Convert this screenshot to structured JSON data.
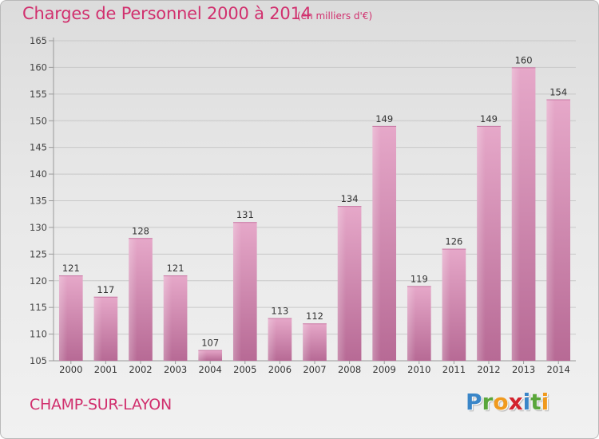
{
  "header": {
    "title": "Charges de Personnel 2000 à 2014",
    "subtitle": "(en milliers d'€)"
  },
  "footer": {
    "commune": "CHAMP-SUR-LAYON",
    "logo_letters": [
      {
        "char": "P",
        "color": "#3a86c8"
      },
      {
        "char": "r",
        "color": "#5aa63a"
      },
      {
        "char": "o",
        "color": "#f09a1e"
      },
      {
        "char": "x",
        "color": "#d3232e"
      },
      {
        "char": "i",
        "color": "#3a86c8"
      },
      {
        "char": "t",
        "color": "#5aa63a"
      },
      {
        "char": "i",
        "color": "#f09a1e"
      }
    ]
  },
  "colors": {
    "accent": "#d1306e",
    "bar_top": "#e6a8c9",
    "bar_bottom": "#b76a95",
    "grid": "#c8c8c8"
  },
  "chart_data": {
    "type": "bar",
    "title": "Charges de Personnel 2000 à 2014",
    "subtitle": "(en milliers d'€)",
    "categories": [
      "2000",
      "2001",
      "2002",
      "2003",
      "2004",
      "2005",
      "2006",
      "2007",
      "2008",
      "2009",
      "2010",
      "2011",
      "2012",
      "2013",
      "2014"
    ],
    "values": [
      121,
      117,
      128,
      121,
      107,
      131,
      113,
      112,
      134,
      149,
      119,
      126,
      149,
      160,
      154
    ],
    "ylim": [
      105,
      165
    ],
    "yticks": [
      105,
      110,
      115,
      120,
      125,
      130,
      135,
      140,
      145,
      150,
      155,
      160,
      165
    ],
    "grid": true,
    "data_labels": true
  }
}
